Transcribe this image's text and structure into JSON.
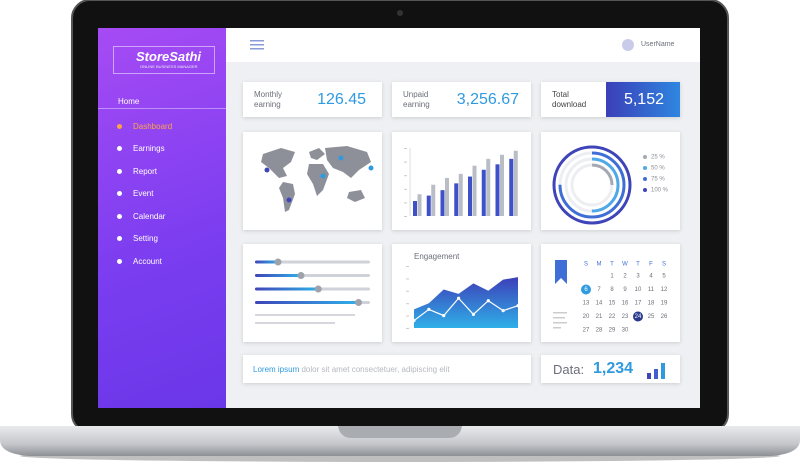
{
  "sidebar": {
    "logo": "StoreSathi",
    "tagline": "ONLINE BUSINESS MANAGER",
    "nav": [
      "Home",
      "Dashboard",
      "Earnings",
      "Report",
      "Event",
      "Calendar",
      "Setting",
      "Account"
    ]
  },
  "topbar": {
    "username": "UserName"
  },
  "stats": [
    {
      "label": "Monthly earning",
      "value": "126.45"
    },
    {
      "label": "Unpaid earning",
      "value": "3,256.67"
    },
    {
      "label": "Total download",
      "value": "5,152"
    }
  ],
  "bar_chart": {
    "ylim": [
      0,
      100
    ],
    "series": [
      {
        "color": "#3f51c9",
        "values": [
          22,
          30,
          38,
          48,
          58,
          68,
          76,
          84
        ]
      },
      {
        "color": "#b9bdc6",
        "values": [
          32,
          46,
          56,
          62,
          74,
          84,
          90,
          96
        ]
      }
    ]
  },
  "ring_chart": {
    "items": [
      {
        "label": "25 %",
        "value": 25,
        "color": "#a3a8b2"
      },
      {
        "label": "50 %",
        "value": 50,
        "color": "#4fa8e8"
      },
      {
        "label": "75 %",
        "value": 75,
        "color": "#3f6fd6"
      },
      {
        "label": "100 %",
        "value": 100,
        "color": "#3f45b8"
      }
    ]
  },
  "sliders": {
    "xlim": [
      0,
      100
    ],
    "values": [
      20,
      40,
      55,
      90
    ]
  },
  "engagement": {
    "title": "Engagement",
    "ylim": [
      0,
      100
    ],
    "series": [
      {
        "color": "#3d4fc7",
        "values": [
          30,
          40,
          62,
          55,
          72,
          60,
          78,
          82
        ]
      },
      {
        "color": "#ffffff",
        "values": [
          12,
          30,
          20,
          48,
          22,
          44,
          28,
          36
        ]
      }
    ]
  },
  "calendar": {
    "weekdays": [
      "S",
      "M",
      "T",
      "W",
      "T",
      "F",
      "S"
    ],
    "weeks": [
      [
        null,
        null,
        1,
        2,
        3,
        4,
        5
      ],
      [
        6,
        7,
        8,
        9,
        10,
        11,
        12
      ],
      [
        13,
        14,
        15,
        16,
        17,
        18,
        19
      ],
      [
        20,
        21,
        22,
        23,
        24,
        25,
        26
      ],
      [
        27,
        28,
        29,
        30,
        null,
        null,
        null
      ]
    ],
    "selected": [
      6,
      24
    ]
  },
  "footer_note": {
    "highlight": "Lorem ipsum",
    "text": "dolor sit amet consectetuer, adipiscing elit"
  },
  "data_card": {
    "label": "Data:",
    "value": "1,234"
  }
}
